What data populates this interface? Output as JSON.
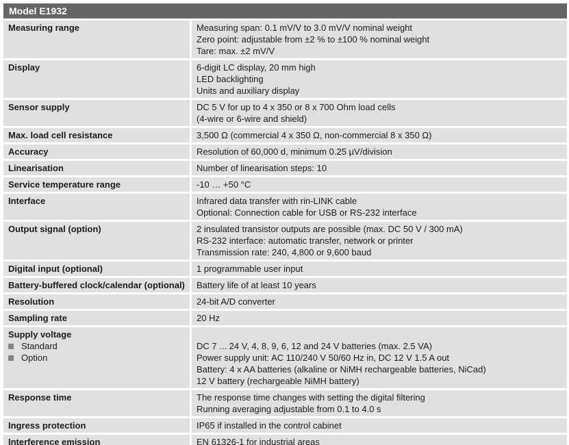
{
  "header": {
    "title": "Model E1932"
  },
  "colors": {
    "header_bg": "#636567",
    "header_text": "#ffffff",
    "cell_bg": "#e0e0de",
    "separator": "#ffffff",
    "text": "#1b1b1b",
    "bullet": "#848484"
  },
  "table": {
    "rows": [
      {
        "label": "Measuring range",
        "values": [
          "Measuring span: 0.1 mV/V to 3.0 mV/V nominal weight",
          "Zero point: adjustable from ±2 % to ±100 % nominal weight",
          "Tare: max. ±2 mV/V"
        ]
      },
      {
        "label": "Display",
        "values": [
          "6-digit LC display, 20 mm high",
          "LED backlighting",
          "Units and auxiliary display"
        ]
      },
      {
        "label": "Sensor supply",
        "values": [
          "DC 5 V for up to 4 x 350 or 8 x 700 Ohm load cells",
          "(4-wire or 6-wire and shield)"
        ]
      },
      {
        "label": "Max. load cell resistance",
        "values": [
          "3,500 Ω (commercial 4 x 350 Ω, non-commercial 8 x 350 Ω)"
        ]
      },
      {
        "label": "Accuracy",
        "values": [
          "Resolution of 60,000 d, minimum 0.25 µV/division"
        ]
      },
      {
        "label": "Linearisation",
        "values": [
          "Number of linearisation steps: 10"
        ]
      },
      {
        "label": "Service temperature range",
        "values": [
          "-10 … +50 °C"
        ]
      },
      {
        "label": "Interface",
        "values": [
          "Infrared data transfer with rin-LINK cable",
          "Optional: Connection cable for USB or RS-232 interface"
        ]
      },
      {
        "label": "Output signal (option)",
        "values": [
          "2 insulated transistor outputs are possible (max. DC 50 V / 300 mA)",
          "RS-232 interface: automatic transfer, network or printer",
          "Transmission rate: 240, 4,800 or 9,600 baud"
        ]
      },
      {
        "label": "Digital input (optional)",
        "values": [
          "1 programmable user input"
        ]
      },
      {
        "label": "Battery-buffered clock/calendar (optional)",
        "values": [
          "Battery life of at least 10 years"
        ]
      },
      {
        "label": "Resolution",
        "values": [
          "24-bit A/D converter"
        ]
      },
      {
        "label": "Sampling rate",
        "values": [
          "20 Hz"
        ]
      },
      {
        "label": "Supply voltage",
        "bullets": [
          "Standard",
          "Option"
        ],
        "values": [
          "",
          "DC 7 ... 24 V, 4, 8, 9, 6, 12 and 24 V batteries (max. 2.5 VA)",
          "Power supply unit: AC 110/240 V 50/60 Hz in, DC 12 V 1.5 A out",
          "Battery: 4 x AA batteries (alkaline or NiMH rechargeable batteries, NiCad)",
          "12 V battery (rechargeable NiMH battery)"
        ]
      },
      {
        "label": "Response time",
        "values": [
          "The response time changes with setting the digital filtering",
          "Running averaging adjustable from 0.1 to 4.0 s"
        ]
      },
      {
        "label": "Ingress protection",
        "values": [
          "IP65 if installed in the control cabinet"
        ]
      },
      {
        "label": "Interference emission",
        "values": [
          "EN 61326-1 for industrial areas"
        ]
      }
    ]
  }
}
